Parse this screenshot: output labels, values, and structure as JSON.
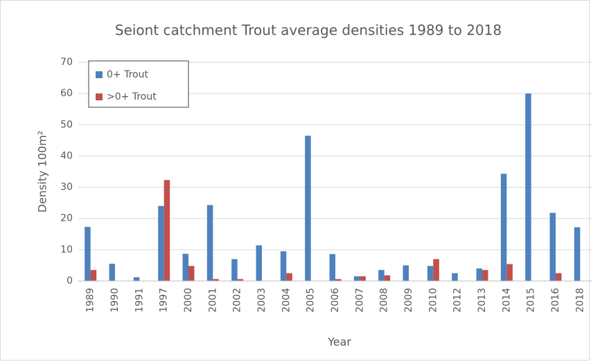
{
  "chart_data": {
    "type": "bar",
    "title": "Seiont catchment Trout average densities 1989 to 2018",
    "x_label": "Year",
    "y_label": "Density 100m²",
    "categories": [
      "1989",
      "1990",
      "1991",
      "1997",
      "2000",
      "2001",
      "2002",
      "2003",
      "2004",
      "2005",
      "2006",
      "2007",
      "2008",
      "2009",
      "2010",
      "2012",
      "2013",
      "2014",
      "2015",
      "2016",
      "2018"
    ],
    "series": [
      {
        "name": "0+ Trout",
        "color": "#4f81bd",
        "values": [
          17.3,
          5.5,
          1.2,
          24,
          8.7,
          24.3,
          7,
          11.4,
          9.5,
          46.5,
          8.6,
          1.5,
          3.5,
          5,
          4.8,
          2.5,
          4,
          34.3,
          60,
          21.8,
          17.2
        ]
      },
      {
        "name": ">0+ Trout",
        "color": "#c0504d",
        "values": [
          3.5,
          0,
          0,
          32.3,
          4.8,
          0.6,
          0.6,
          0,
          2.5,
          0,
          0.6,
          1.5,
          1.8,
          0,
          7,
          0,
          3.5,
          5.4,
          0,
          2.5,
          0
        ]
      }
    ],
    "ylim": [
      0,
      70
    ],
    "yticks": [
      0,
      10,
      20,
      30,
      40,
      50,
      60,
      70
    ],
    "grid": true,
    "legend": "top-left"
  }
}
